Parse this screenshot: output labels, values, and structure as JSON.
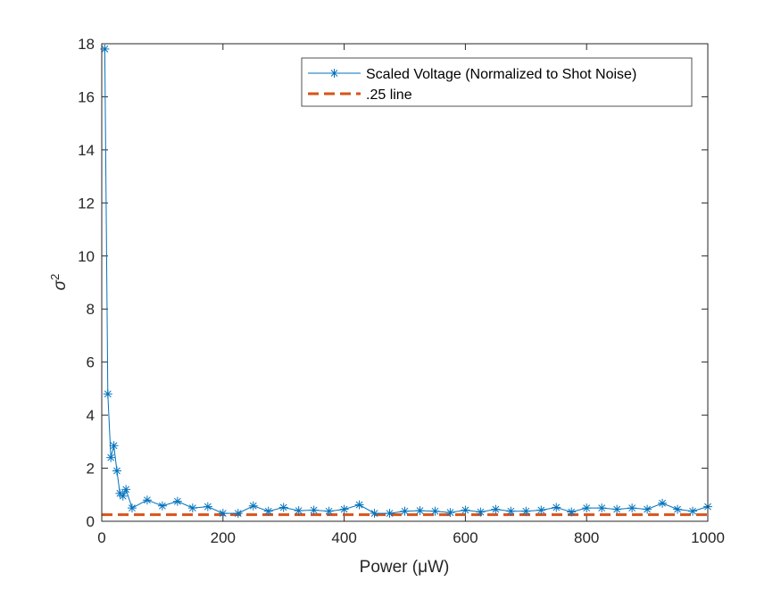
{
  "chart_data": {
    "type": "line",
    "xlabel": "Power (μW)",
    "ylabel": "σ",
    "ylabel_superscript": "2",
    "xlim": [
      0,
      1000
    ],
    "ylim": [
      0,
      18
    ],
    "x_ticks": [
      0,
      200,
      400,
      600,
      800,
      1000
    ],
    "y_ticks": [
      0,
      2,
      4,
      6,
      8,
      10,
      12,
      14,
      16,
      18
    ],
    "grid": false,
    "legend_position": "top-right",
    "series": [
      {
        "name": "Scaled Voltage (Normalized to Shot Noise)",
        "style": "solid line with asterisk markers",
        "color": "#0072BD",
        "x": [
          5,
          10,
          15,
          20,
          25,
          30,
          35,
          40,
          50,
          75,
          100,
          125,
          150,
          175,
          200,
          225,
          250,
          275,
          300,
          325,
          350,
          375,
          400,
          425,
          450,
          475,
          500,
          525,
          550,
          575,
          600,
          625,
          650,
          675,
          700,
          725,
          750,
          775,
          800,
          825,
          850,
          875,
          900,
          925,
          950,
          975,
          1000
        ],
        "y": [
          17.8,
          4.8,
          2.4,
          2.85,
          1.9,
          1.05,
          0.95,
          1.2,
          0.5,
          0.8,
          0.58,
          0.75,
          0.5,
          0.55,
          0.3,
          0.3,
          0.58,
          0.38,
          0.52,
          0.4,
          0.42,
          0.38,
          0.45,
          0.62,
          0.3,
          0.3,
          0.38,
          0.4,
          0.38,
          0.33,
          0.42,
          0.35,
          0.45,
          0.38,
          0.38,
          0.42,
          0.52,
          0.35,
          0.5,
          0.5,
          0.45,
          0.5,
          0.45,
          0.68,
          0.45,
          0.38,
          0.55
        ]
      },
      {
        "name": ".25 line",
        "style": "dashed",
        "color": "#D95319",
        "x": [
          0,
          1000
        ],
        "y": [
          0.25,
          0.25
        ]
      }
    ]
  }
}
